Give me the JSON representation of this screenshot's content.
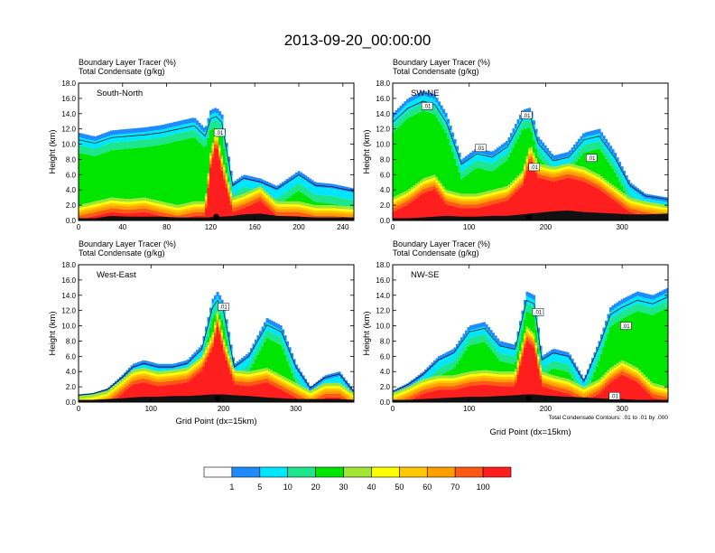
{
  "figure": {
    "title": "2013-09-20_00:00:00",
    "panel_header_line1": "Boundary Layer Tracer    (%)",
    "panel_header_line2": "Total Condensate    (g/kg)",
    "ylabel": "Height (km)",
    "xlabel": "Grid Point (dx=15km)",
    "contour_note": "Total Condensate Contours: .01 to .01 by .000",
    "contour_label": ".01"
  },
  "colors": {
    "levels": [
      "#ffffff",
      "#1e8cff",
      "#00e6ff",
      "#1ee68c",
      "#00e600",
      "#a0e632",
      "#ffff00",
      "#ffc800",
      "#ffa000",
      "#ff5a14",
      "#ff1e1e"
    ],
    "terrain": "#111111",
    "contour": "#000000"
  },
  "colorbar": {
    "labels": [
      "1",
      "5",
      "10",
      "20",
      "30",
      "40",
      "50",
      "60",
      "70",
      "100"
    ]
  },
  "chart_data": [
    {
      "type": "heatmap",
      "panel": "South-North",
      "title": "South-North",
      "xlim": [
        0,
        250
      ],
      "ylim": [
        0,
        18
      ],
      "xticks": [
        "0",
        "40",
        "80",
        "120",
        "160",
        "200",
        "240"
      ],
      "yticks": [
        "0.0",
        "2.0",
        "4.0",
        "6.0",
        "8.0",
        "10.0",
        "12.0",
        "14.0",
        "16.0",
        "18.0"
      ],
      "marker_x": 125,
      "contour_labels": [
        {
          "x": 128,
          "y": 11.5,
          "text": ".01"
        }
      ],
      "x": [
        0,
        15,
        30,
        45,
        60,
        75,
        90,
        105,
        115,
        120,
        125,
        130,
        140,
        150,
        165,
        180,
        200,
        215,
        230,
        250
      ],
      "top_km": [
        11.5,
        11.0,
        11.8,
        12.0,
        12.2,
        12.5,
        13.0,
        13.5,
        12.0,
        14.5,
        14.8,
        14.0,
        5.0,
        6.0,
        5.5,
        4.5,
        6.5,
        5.0,
        4.8,
        4.2
      ],
      "bl_top_km": [
        2.0,
        2.5,
        3.0,
        2.8,
        3.0,
        2.5,
        2.0,
        2.5,
        2.5,
        9.0,
        12.0,
        8.5,
        3.0,
        3.5,
        4.5,
        2.5,
        2.5,
        2.0,
        2.0,
        1.8
      ],
      "terrain_km": [
        0.3,
        0.3,
        0.6,
        0.5,
        0.5,
        0.5,
        0.4,
        0.4,
        0.4,
        0.4,
        0.5,
        0.5,
        0.6,
        0.8,
        0.9,
        0.6,
        0.5,
        0.4,
        0.4,
        0.4
      ]
    },
    {
      "type": "heatmap",
      "panel": "SW-NE",
      "title": "SW-NE",
      "xlim": [
        0,
        360
      ],
      "ylim": [
        0,
        18
      ],
      "xticks": [
        "0",
        "100",
        "200",
        "300"
      ],
      "yticks": [
        "0.0",
        "2.0",
        "4.0",
        "6.0",
        "8.0",
        "10.0",
        "12.0",
        "14.0",
        "16.0",
        "18.0"
      ],
      "marker_x": 178,
      "contour_labels": [
        {
          "x": 45,
          "y": 15.0,
          "text": ".01"
        },
        {
          "x": 175,
          "y": 13.8,
          "text": ".01"
        },
        {
          "x": 115,
          "y": 9.5,
          "text": ".01"
        },
        {
          "x": 185,
          "y": 7.0,
          "text": ".01"
        },
        {
          "x": 260,
          "y": 8.2,
          "text": ".01"
        }
      ],
      "x": [
        0,
        20,
        40,
        55,
        70,
        90,
        110,
        130,
        150,
        170,
        180,
        190,
        210,
        230,
        250,
        270,
        290,
        310,
        330,
        360
      ],
      "top_km": [
        14.0,
        16.0,
        17.0,
        16.5,
        14.0,
        8.0,
        9.5,
        9.0,
        10.5,
        14.5,
        14.8,
        11.0,
        8.5,
        9.0,
        11.5,
        12.0,
        9.0,
        5.0,
        3.5,
        3.0
      ],
      "bl_top_km": [
        3.0,
        4.0,
        5.5,
        6.0,
        4.0,
        3.5,
        3.5,
        4.0,
        4.5,
        6.5,
        10.0,
        7.5,
        7.0,
        7.5,
        7.0,
        6.0,
        4.5,
        3.0,
        2.5,
        2.0
      ],
      "terrain_km": [
        0.3,
        0.3,
        0.4,
        0.5,
        0.6,
        0.5,
        0.5,
        0.6,
        0.6,
        0.8,
        0.9,
        1.0,
        1.2,
        1.3,
        1.1,
        1.0,
        0.9,
        0.8,
        0.8,
        0.9
      ]
    },
    {
      "type": "heatmap",
      "panel": "West-East",
      "title": "West-East",
      "xlim": [
        0,
        380
      ],
      "ylim": [
        0,
        18
      ],
      "xticks": [
        "0",
        "100",
        "200",
        "300"
      ],
      "yticks": [
        "0.0",
        "2.0",
        "4.0",
        "6.0",
        "8.0",
        "10.0",
        "12.0",
        "14.0",
        "16.0",
        "18.0"
      ],
      "marker_x": 192,
      "contour_labels": [
        {
          "x": 200,
          "y": 12.5,
          "text": ".01"
        }
      ],
      "x": [
        0,
        20,
        40,
        60,
        75,
        90,
        110,
        130,
        150,
        170,
        185,
        192,
        200,
        215,
        235,
        260,
        280,
        300,
        320,
        340,
        360,
        380
      ],
      "top_km": [
        1.0,
        1.2,
        1.8,
        3.5,
        5.0,
        5.5,
        5.0,
        5.0,
        5.5,
        7.5,
        13.5,
        14.5,
        13.0,
        5.0,
        6.5,
        11.0,
        10.0,
        5.0,
        2.0,
        3.5,
        4.0,
        1.5
      ],
      "bl_top_km": [
        0.8,
        1.0,
        1.5,
        3.0,
        4.2,
        4.5,
        4.0,
        4.2,
        4.5,
        6.0,
        9.0,
        12.0,
        8.5,
        4.2,
        4.0,
        4.5,
        3.5,
        2.5,
        1.5,
        2.5,
        2.5,
        1.2
      ],
      "terrain_km": [
        0.3,
        0.3,
        0.4,
        0.5,
        0.6,
        0.7,
        0.7,
        0.8,
        0.8,
        0.9,
        1.0,
        1.0,
        1.0,
        0.9,
        0.8,
        0.6,
        0.5,
        0.4,
        0.4,
        0.4,
        0.4,
        0.3
      ]
    },
    {
      "type": "heatmap",
      "panel": "NW-SE",
      "title": "NW-SE",
      "xlim": [
        0,
        360
      ],
      "ylim": [
        0,
        18
      ],
      "xticks": [
        "0",
        "100",
        "200",
        "300"
      ],
      "yticks": [
        "0.0",
        "2.0",
        "4.0",
        "6.0",
        "8.0",
        "10.0",
        "12.0",
        "14.0",
        "16.0",
        "18.0"
      ],
      "marker_x": 178,
      "contour_labels": [
        {
          "x": 190,
          "y": 11.8,
          "text": ".01"
        },
        {
          "x": 305,
          "y": 10.0,
          "text": ".01"
        },
        {
          "x": 290,
          "y": 0.8,
          "text": ".01"
        }
      ],
      "x": [
        0,
        20,
        40,
        60,
        80,
        100,
        120,
        140,
        160,
        175,
        185,
        195,
        210,
        230,
        250,
        270,
        285,
        300,
        320,
        340,
        360
      ],
      "top_km": [
        1.5,
        2.5,
        4.0,
        6.0,
        7.0,
        10.0,
        10.5,
        8.0,
        7.5,
        14.5,
        14.0,
        6.0,
        7.0,
        6.5,
        3.0,
        8.0,
        12.5,
        13.5,
        14.5,
        14.0,
        15.0
      ],
      "bl_top_km": [
        1.2,
        2.0,
        3.0,
        3.5,
        3.5,
        4.0,
        4.2,
        4.0,
        4.0,
        10.0,
        9.0,
        4.0,
        3.5,
        3.0,
        2.0,
        3.0,
        4.5,
        5.5,
        4.5,
        2.5,
        2.0
      ],
      "terrain_km": [
        0.3,
        0.3,
        0.4,
        0.5,
        0.6,
        0.7,
        0.7,
        0.8,
        0.9,
        1.0,
        1.0,
        0.9,
        0.8,
        0.7,
        0.6,
        0.5,
        0.4,
        0.4,
        0.3,
        0.3,
        0.3
      ]
    }
  ]
}
